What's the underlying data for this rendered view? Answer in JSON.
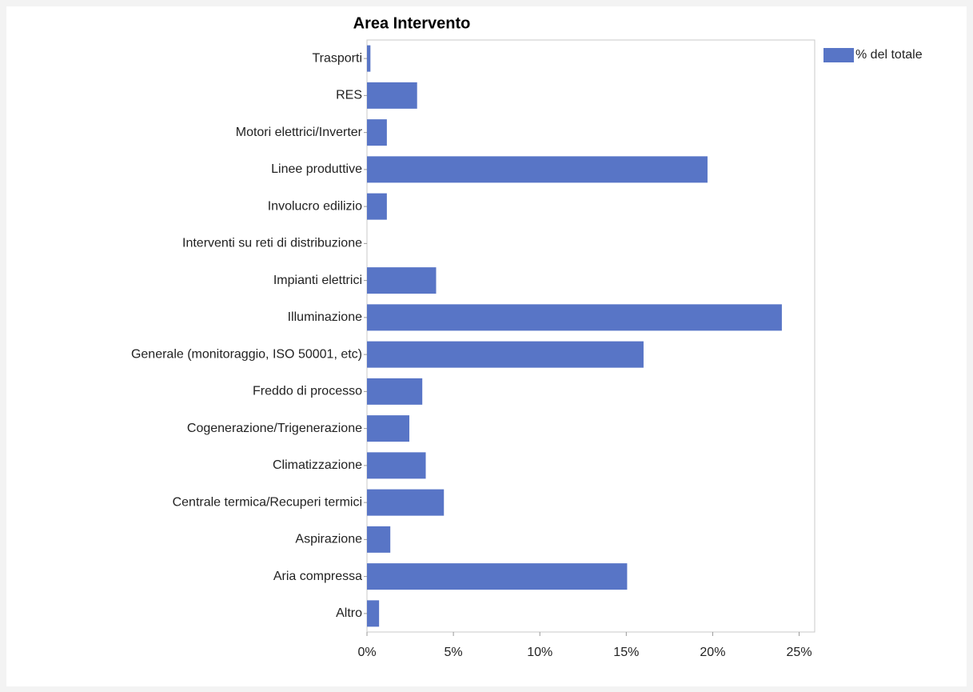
{
  "chart_data": {
    "type": "barh",
    "title": "Area Intervento",
    "categories": [
      "Trasporti",
      "RES",
      "Motori elettrici/Inverter",
      "Linee produttive",
      "Involucro edilizio",
      "Interventi su reti di distribuzione",
      "Impianti elettrici",
      "Illuminazione",
      "Generale (monitoraggio, ISO 50001, etc)",
      "Freddo di processo",
      "Cogenerazione/Trigenerazione",
      "Climatizzazione",
      "Centrale termica/Recuperi termici",
      "Aspirazione",
      "Aria compressa",
      "Altro"
    ],
    "series": [
      {
        "name": "% del totale",
        "color": "#5875c6",
        "values": [
          0.2,
          2.9,
          1.15,
          19.7,
          1.15,
          0,
          4.0,
          24.0,
          16.0,
          3.2,
          2.45,
          3.4,
          4.45,
          1.35,
          15.05,
          0.7
        ]
      }
    ],
    "xlim": [
      0,
      25.9
    ],
    "xticks": [
      {
        "value": 0,
        "label": "0%"
      },
      {
        "value": 5,
        "label": "5%"
      },
      {
        "value": 10,
        "label": "10%"
      },
      {
        "value": 15,
        "label": "15%"
      },
      {
        "value": 20,
        "label": "20%"
      },
      {
        "value": 25,
        "label": "25%"
      }
    ],
    "legend": "top-right"
  }
}
